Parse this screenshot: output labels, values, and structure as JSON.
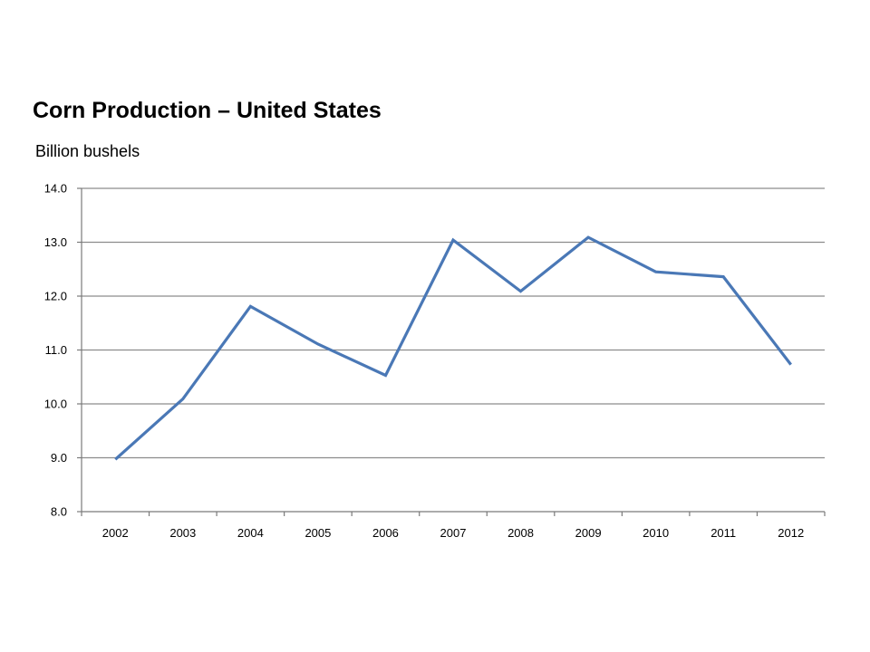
{
  "chart_data": {
    "type": "line",
    "title": "Corn Production – United States",
    "ylabel": "Billion bushels",
    "xlabel": "",
    "categories": [
      "2002",
      "2003",
      "2004",
      "2005",
      "2006",
      "2007",
      "2008",
      "2009",
      "2010",
      "2011",
      "2012"
    ],
    "series": [
      {
        "values": [
          8.97,
          10.09,
          11.81,
          11.11,
          10.53,
          13.04,
          12.09,
          13.09,
          12.45,
          12.36,
          10.73
        ],
        "color": "#4a78b6"
      }
    ],
    "ylim": [
      8.0,
      14.0
    ],
    "yticks": [
      "8.0",
      "9.0",
      "10.0",
      "11.0",
      "12.0",
      "13.0",
      "14.0"
    ],
    "grid": true,
    "legend": "none"
  }
}
